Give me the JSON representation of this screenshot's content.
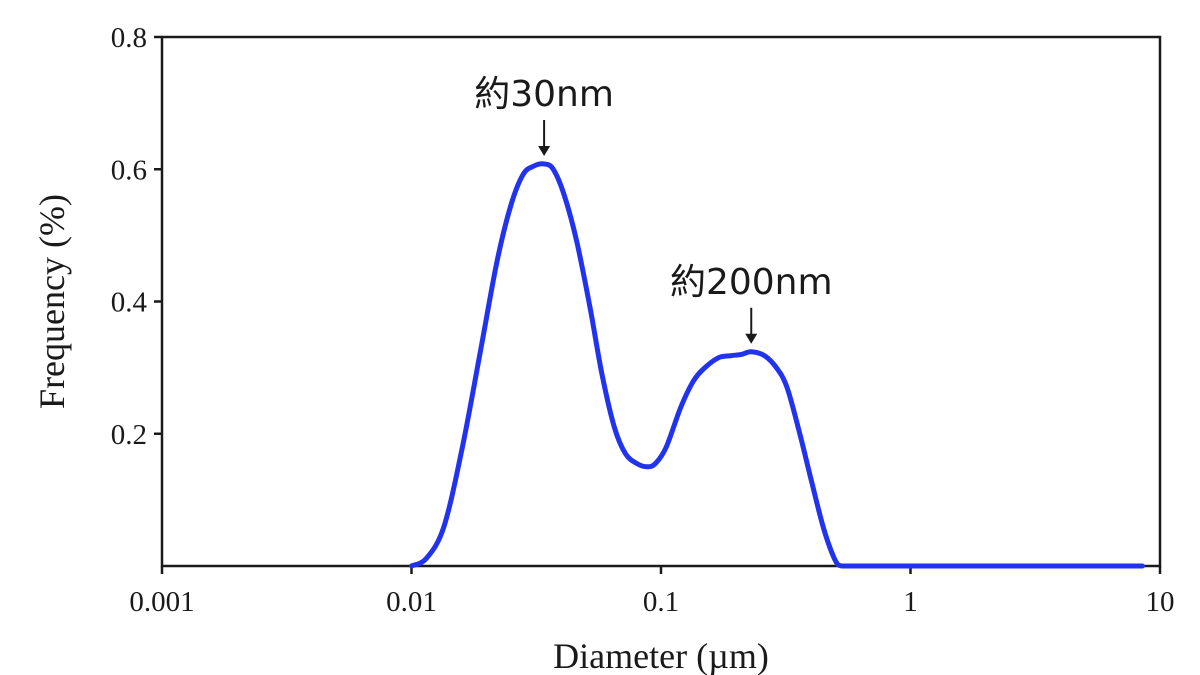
{
  "chart_data": {
    "type": "line",
    "xscale": "log",
    "xlim": [
      0.001,
      10
    ],
    "ylim": [
      0,
      0.8
    ],
    "xlabel": "Diameter (µm)",
    "ylabel": "Frequency (%)",
    "x_ticks": [
      0.001,
      0.01,
      0.1,
      1,
      10
    ],
    "x_tick_labels": [
      "0.001",
      "0.01",
      "0.1",
      "1",
      "10"
    ],
    "y_ticks": [
      0.2,
      0.4,
      0.6,
      0.8
    ],
    "y_tick_labels": [
      "0.2",
      "0.4",
      "0.6",
      "0.8"
    ],
    "grid": false,
    "series": [
      {
        "color": "#2233ee",
        "x": [
          0.01,
          0.0115,
          0.0135,
          0.016,
          0.019,
          0.022,
          0.025,
          0.028,
          0.031,
          0.034,
          0.037,
          0.041,
          0.046,
          0.052,
          0.058,
          0.065,
          0.072,
          0.08,
          0.088,
          0.095,
          0.105,
          0.12,
          0.135,
          0.15,
          0.17,
          0.19,
          0.21,
          0.23,
          0.26,
          0.29,
          0.32,
          0.36,
          0.4,
          0.45,
          0.5,
          0.53,
          0.6,
          1,
          2,
          5,
          8.5
        ],
        "y": [
          0.0,
          0.012,
          0.06,
          0.18,
          0.33,
          0.46,
          0.545,
          0.592,
          0.605,
          0.608,
          0.6,
          0.56,
          0.49,
          0.39,
          0.29,
          0.21,
          0.17,
          0.155,
          0.15,
          0.155,
          0.18,
          0.24,
          0.28,
          0.3,
          0.315,
          0.318,
          0.32,
          0.324,
          0.318,
          0.3,
          0.27,
          0.2,
          0.13,
          0.055,
          0.008,
          0.0,
          0.0,
          0.0,
          0.0,
          0.0,
          0.0
        ]
      }
    ],
    "annotations": [
      {
        "text": "約30nm",
        "x": 0.034,
        "y": 0.608
      },
      {
        "text": "約200nm",
        "x": 0.23,
        "y": 0.324
      }
    ]
  }
}
